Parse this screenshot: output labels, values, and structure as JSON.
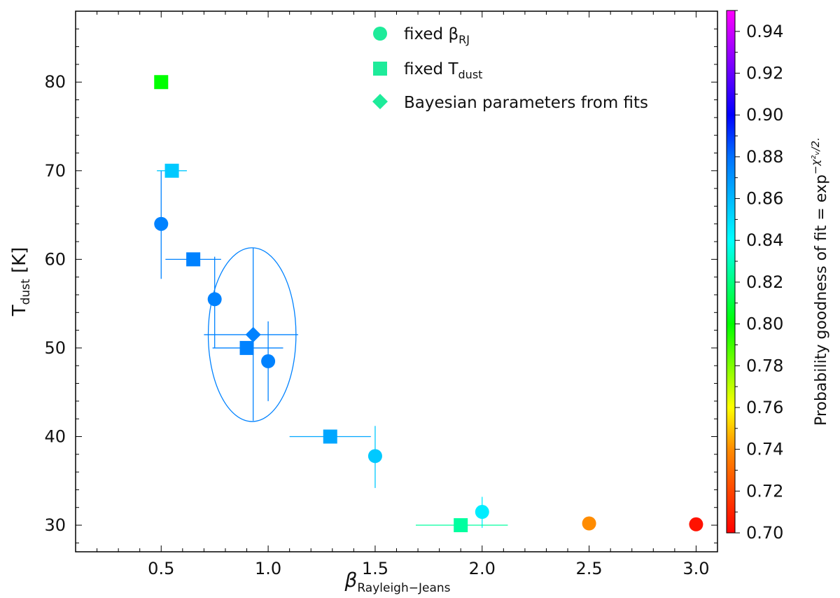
{
  "chart_data": {
    "type": "scatter",
    "xlabel": "β",
    "xlabel_sub": "Rayleigh−Jeans",
    "ylabel": "T",
    "ylabel_sub": "dust",
    "ylabel_unit": " [K]",
    "xlim": [
      0.1,
      3.1
    ],
    "ylim": [
      27,
      88
    ],
    "xticks": [
      "0.5",
      "1.0",
      "1.5",
      "2.0",
      "2.5",
      "3.0"
    ],
    "yticks": [
      "30",
      "40",
      "50",
      "60",
      "70",
      "80"
    ],
    "colorbar": {
      "label": "Probability goodness of fit = exp",
      "label_exponent": "−χ²ᵥ/2.",
      "range": [
        0.7,
        0.95
      ],
      "ticks": [
        "0.70",
        "0.72",
        "0.74",
        "0.76",
        "0.78",
        "0.80",
        "0.82",
        "0.84",
        "0.86",
        "0.88",
        "0.90",
        "0.92",
        "0.94"
      ]
    },
    "legend": {
      "position": "top-right",
      "entries": [
        {
          "marker": "circle",
          "text": "fixed β",
          "sub": "RJ"
        },
        {
          "marker": "square",
          "text": "fixed T",
          "sub": "dust"
        },
        {
          "marker": "diamond",
          "text": "Bayesian parameters from fits",
          "sub": ""
        }
      ],
      "color": "#1eeb9a"
    },
    "series": [
      {
        "marker": "circle",
        "points": [
          {
            "x": 0.5,
            "y": 64.0,
            "prob": 0.875,
            "yerr": [
              57.8,
              70.0
            ],
            "xerr": null
          },
          {
            "x": 0.75,
            "y": 55.5,
            "prob": 0.875,
            "yerr": [
              50.0,
              60.3
            ],
            "xerr": null
          },
          {
            "x": 1.0,
            "y": 48.5,
            "prob": 0.875,
            "yerr": [
              44.0,
              53.0
            ],
            "xerr": null
          },
          {
            "x": 1.5,
            "y": 37.8,
            "prob": 0.855,
            "yerr": [
              34.2,
              41.2
            ],
            "xerr": null
          },
          {
            "x": 2.0,
            "y": 31.5,
            "prob": 0.845,
            "yerr": [
              29.7,
              33.2
            ],
            "xerr": null
          },
          {
            "x": 2.5,
            "y": 30.2,
            "prob": 0.74,
            "yerr": null,
            "xerr": null
          },
          {
            "x": 3.0,
            "y": 30.1,
            "prob": 0.705,
            "yerr": null,
            "xerr": null
          }
        ]
      },
      {
        "marker": "square",
        "points": [
          {
            "x": 0.5,
            "y": 80.0,
            "prob": 0.8,
            "yerr": null,
            "xerr": null
          },
          {
            "x": 0.55,
            "y": 70.0,
            "prob": 0.855,
            "yerr": null,
            "xerr": [
              0.48,
              0.62
            ]
          },
          {
            "x": 0.65,
            "y": 60.0,
            "prob": 0.875,
            "yerr": null,
            "xerr": [
              0.52,
              0.78
            ]
          },
          {
            "x": 0.9,
            "y": 50.0,
            "prob": 0.875,
            "yerr": null,
            "xerr": [
              0.74,
              1.07
            ]
          },
          {
            "x": 1.29,
            "y": 40.0,
            "prob": 0.865,
            "yerr": null,
            "xerr": [
              1.1,
              1.48
            ]
          },
          {
            "x": 1.9,
            "y": 30.0,
            "prob": 0.825,
            "yerr": null,
            "xerr": [
              1.69,
              2.12
            ]
          }
        ]
      },
      {
        "marker": "diamond",
        "points": [
          {
            "x": 0.93,
            "y": 51.5,
            "prob": 0.875,
            "yerr": [
              41.8,
              61.3
            ],
            "xerr": [
              0.7,
              1.14
            ],
            "ellipse": {
              "cx": 0.925,
              "cy": 51.5,
              "rx": 0.205,
              "ry": 9.8
            }
          }
        ]
      }
    ]
  }
}
